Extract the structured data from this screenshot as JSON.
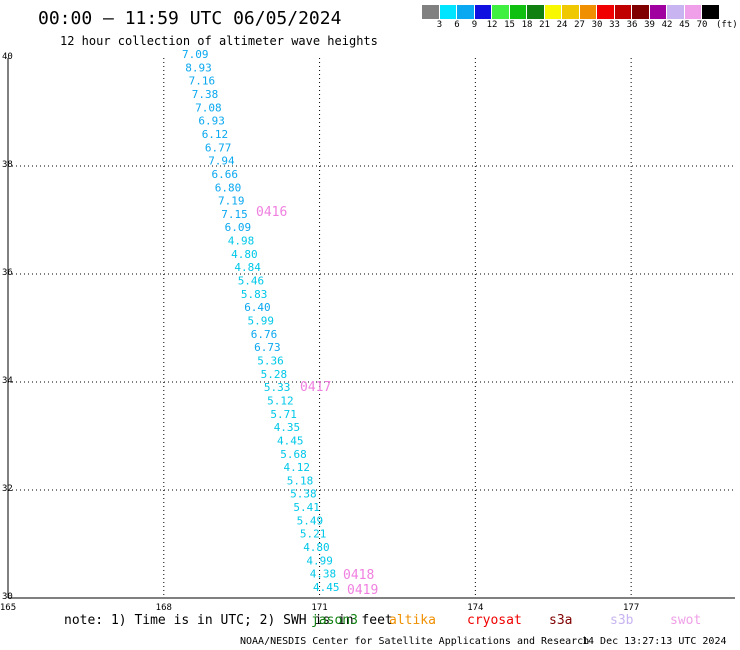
{
  "header": {
    "title": "00:00 – 11:59 UTC 06/05/2024",
    "subtitle": "12 hour collection of altimeter wave heights"
  },
  "colorbar": {
    "colors": [
      "#808080",
      "#00e5ff",
      "#0aa8f0",
      "#1010e0",
      "#40f040",
      "#10c010",
      "#108010",
      "#f8f800",
      "#f0c800",
      "#f09000",
      "#f00000",
      "#c00000",
      "#800000",
      "#a000a0",
      "#c8b4f0",
      "#f0a0e8",
      "#000000"
    ],
    "labels": [
      "3",
      "6",
      "9",
      "12",
      "15",
      "18",
      "21",
      "24",
      "27",
      "30",
      "33",
      "36",
      "39",
      "42",
      "45",
      "70"
    ],
    "unit": "(ft)"
  },
  "axes": {
    "y_ticks": [
      "40",
      "38",
      "36",
      "34",
      "32",
      "30"
    ],
    "x_ticks": [
      "165",
      "168",
      "171",
      "174",
      "177"
    ]
  },
  "observations": [
    {
      "v": "7.09",
      "c": "#0aa8f0"
    },
    {
      "v": "8.93",
      "c": "#0aa8f0"
    },
    {
      "v": "7.16",
      "c": "#0aa8f0"
    },
    {
      "v": "7.38",
      "c": "#0aa8f0"
    },
    {
      "v": "7.08",
      "c": "#0aa8f0"
    },
    {
      "v": "6.93",
      "c": "#0aa8f0"
    },
    {
      "v": "6.12",
      "c": "#0aa8f0"
    },
    {
      "v": "6.77",
      "c": "#0aa8f0"
    },
    {
      "v": "7.94",
      "c": "#0aa8f0"
    },
    {
      "v": "6.66",
      "c": "#0aa8f0"
    },
    {
      "v": "6.80",
      "c": "#0aa8f0"
    },
    {
      "v": "7.19",
      "c": "#0aa8f0"
    },
    {
      "v": "7.15",
      "c": "#0aa8f0"
    },
    {
      "v": "6.09",
      "c": "#0aa8f0"
    },
    {
      "v": "4.98",
      "c": "#00c8e8"
    },
    {
      "v": "4.80",
      "c": "#00c8e8"
    },
    {
      "v": "4.84",
      "c": "#00c8e8"
    },
    {
      "v": "5.46",
      "c": "#00c8e8"
    },
    {
      "v": "5.83",
      "c": "#00c8e8"
    },
    {
      "v": "6.40",
      "c": "#0aa8f0"
    },
    {
      "v": "5.99",
      "c": "#00c8e8"
    },
    {
      "v": "6.76",
      "c": "#0aa8f0"
    },
    {
      "v": "6.73",
      "c": "#0aa8f0"
    },
    {
      "v": "5.36",
      "c": "#00c8e8"
    },
    {
      "v": "5.28",
      "c": "#00c8e8"
    },
    {
      "v": "5.33",
      "c": "#00c8e8"
    },
    {
      "v": "5.12",
      "c": "#00c8e8"
    },
    {
      "v": "5.71",
      "c": "#00c8e8"
    },
    {
      "v": "4.35",
      "c": "#00c8e8"
    },
    {
      "v": "4.45",
      "c": "#00c8e8"
    },
    {
      "v": "5.68",
      "c": "#00c8e8"
    },
    {
      "v": "4.12",
      "c": "#00c8e8"
    },
    {
      "v": "5.18",
      "c": "#00c8e8"
    },
    {
      "v": "5.38",
      "c": "#00c8e8"
    },
    {
      "v": "5.41",
      "c": "#00c8e8"
    },
    {
      "v": "5.49",
      "c": "#00c8e8"
    },
    {
      "v": "5.21",
      "c": "#00c8e8"
    },
    {
      "v": "4.80",
      "c": "#00c8e8"
    },
    {
      "v": "4.99",
      "c": "#00c8e8"
    },
    {
      "v": "4.38",
      "c": "#00c8e8"
    },
    {
      "v": "4.45",
      "c": "#00c8e8"
    }
  ],
  "time_labels": [
    "0416",
    "0417",
    "0418",
    "0419"
  ],
  "time_label_color": "#f080e0",
  "note": "note: 1) Time is in UTC; 2) SWH is in feet",
  "legend": [
    {
      "name": "jason3",
      "color": "#108010"
    },
    {
      "name": "altika",
      "color": "#f09000"
    },
    {
      "name": "cryosat",
      "color": "#f00000"
    },
    {
      "name": "s3a",
      "color": "#800000"
    },
    {
      "name": "s3b",
      "color": "#c8b4f0"
    },
    {
      "name": "swot",
      "color": "#f0a0e8"
    }
  ],
  "footer": {
    "credit": "NOAA/NESDIS Center for Satellite Applications and Research",
    "timestamp": "14 Dec 13:27:13 UTC 2024"
  }
}
